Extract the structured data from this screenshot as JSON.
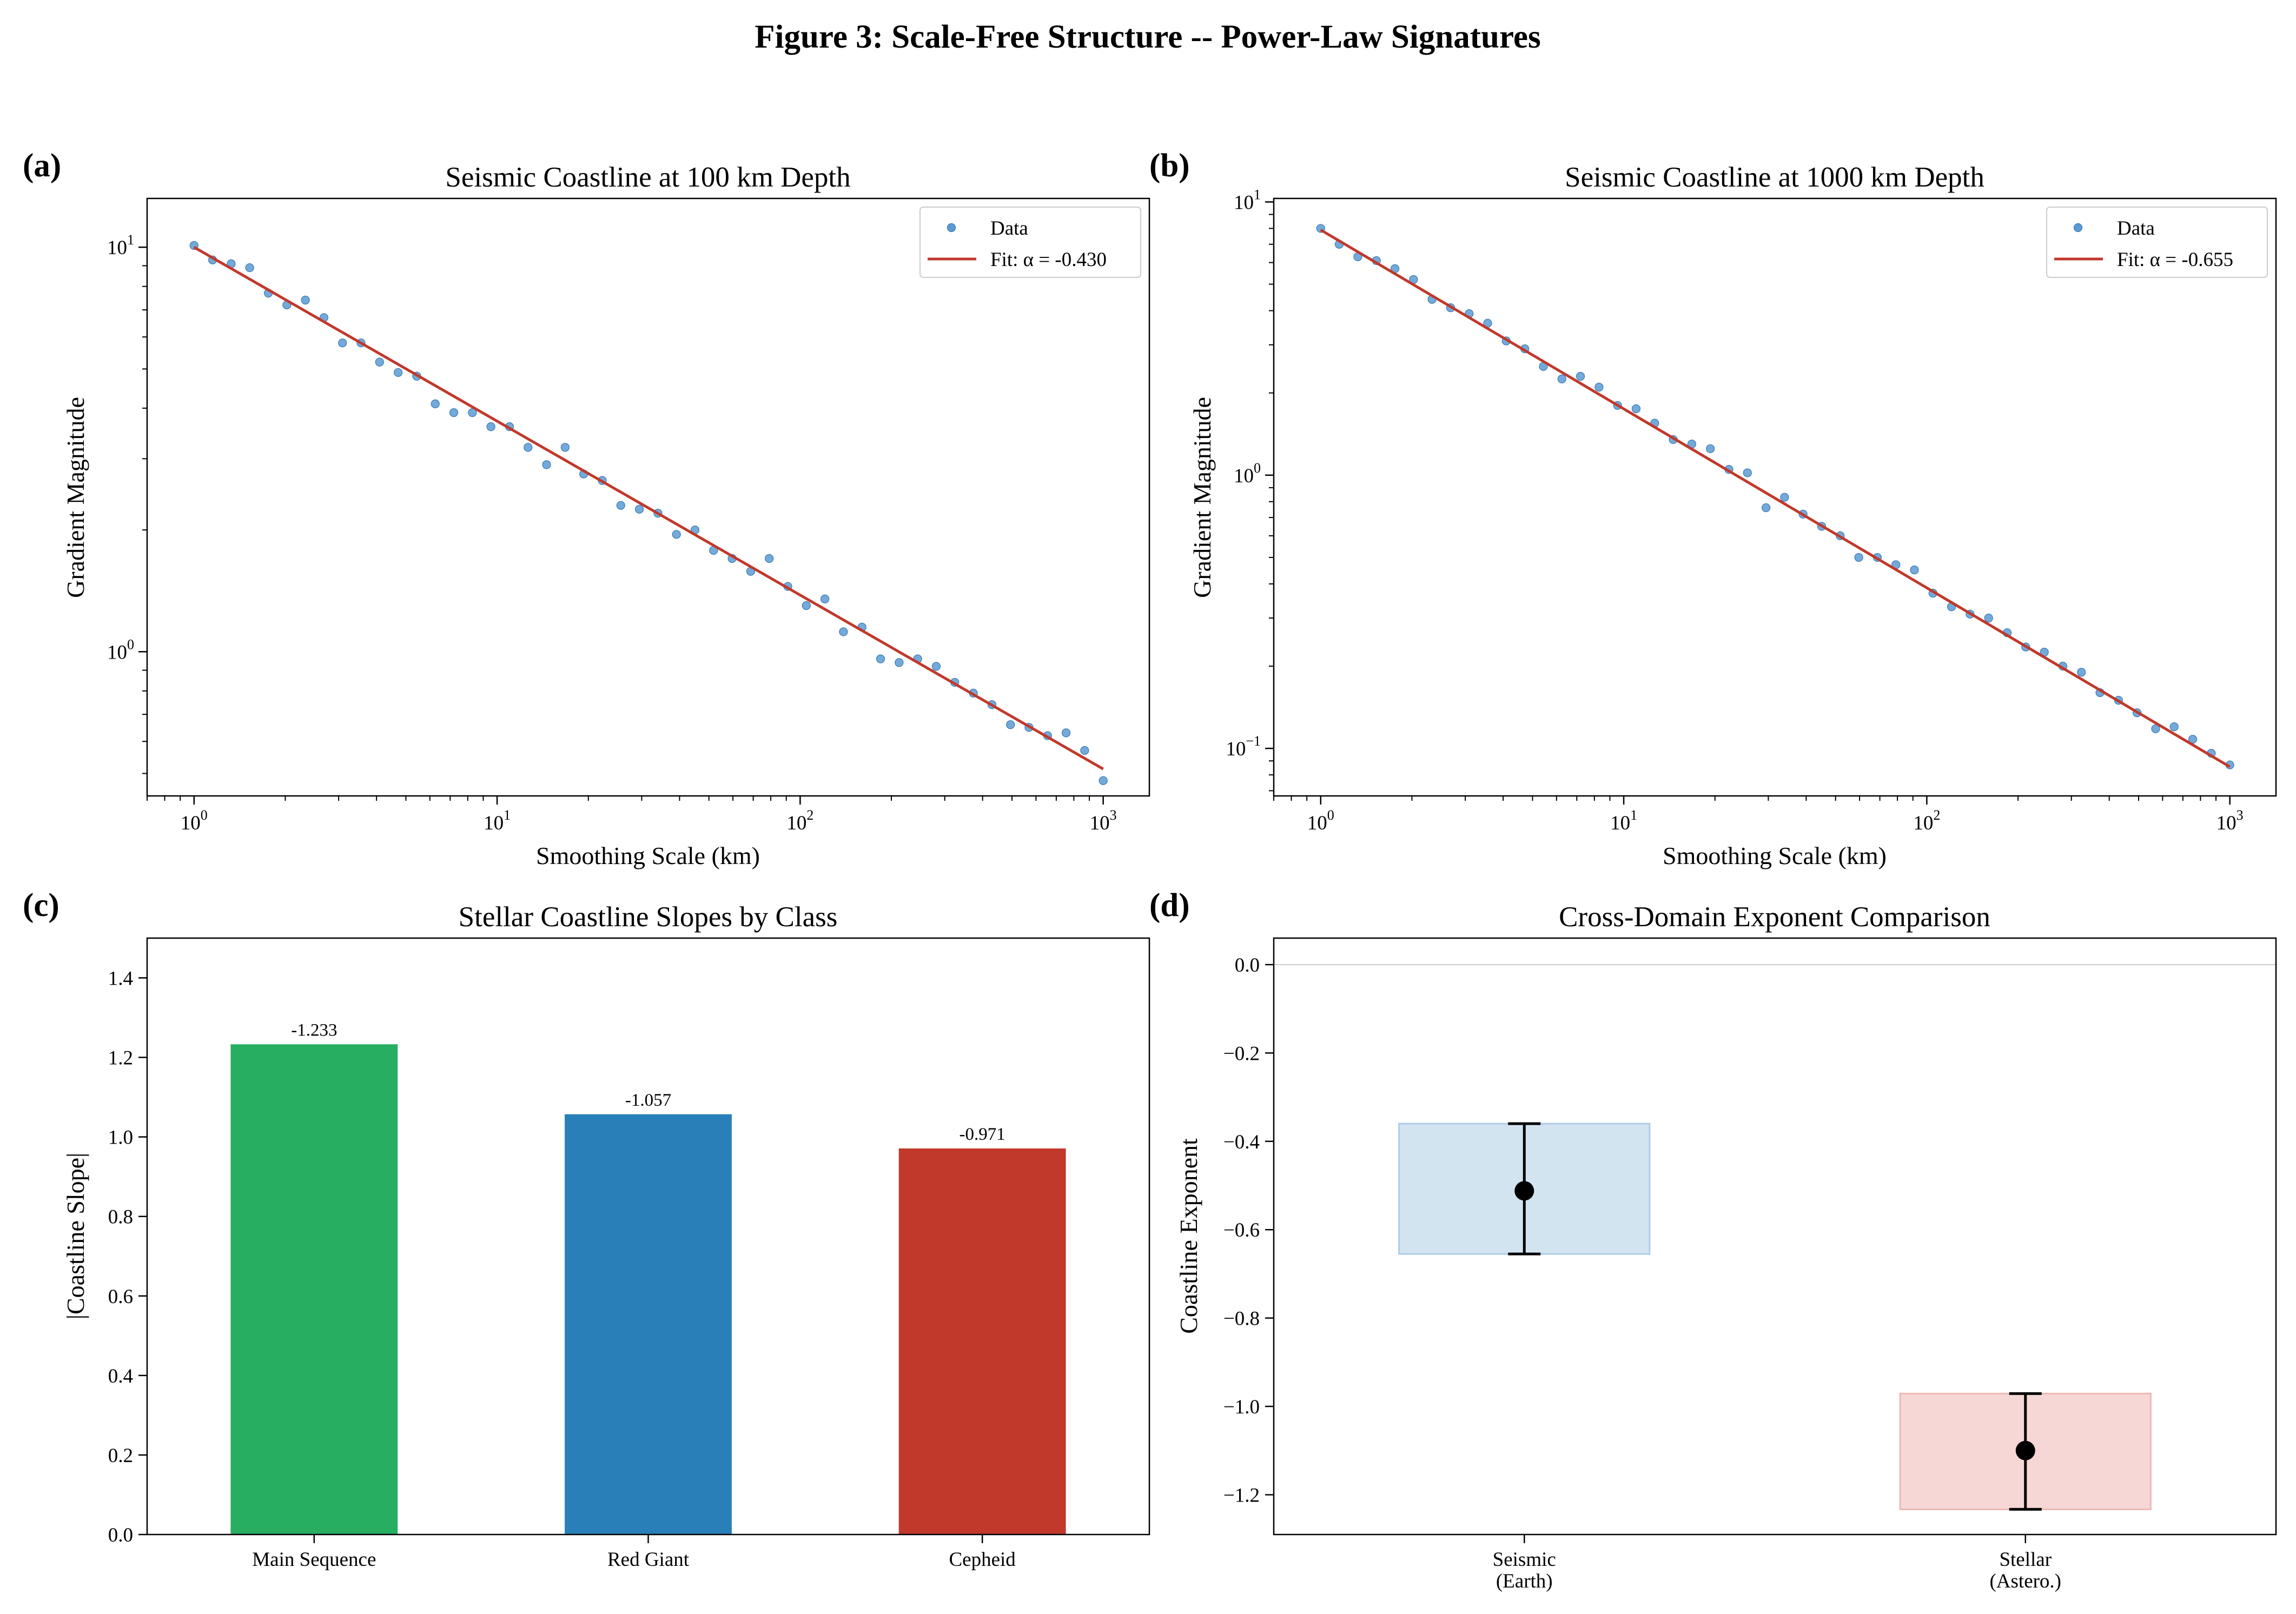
{
  "figure": {
    "title": "Figure 3: Scale-Free Structure -- Power-Law Signatures"
  },
  "colors": {
    "data_marker": "#5b9bd5",
    "fit_line": "#c0392b",
    "main_sequence": "#27ae60",
    "red_giant": "#2980b9",
    "cepheid": "#c0392b",
    "seismic_band": "#aecde6",
    "stellar_band": "#eeb7b3",
    "marker": "#000000"
  },
  "chart_data": [
    {
      "panel": "(a)",
      "type": "scatter",
      "title": "Seismic Coastline at 100 km Depth",
      "xlabel": "Smoothing Scale (km)",
      "ylabel": "Gradient Magnitude",
      "xscale": "log",
      "yscale": "log",
      "xlim": [
        0.7,
        1420
      ],
      "ylim": [
        0.44,
        13.2
      ],
      "xticks": [
        {
          "base": "10",
          "exp": "0",
          "value": 1
        },
        {
          "base": "10",
          "exp": "1",
          "value": 10
        },
        {
          "base": "10",
          "exp": "2",
          "value": 100
        },
        {
          "base": "10",
          "exp": "3",
          "value": 1000
        }
      ],
      "yticks": [
        {
          "base": "10",
          "exp": "0",
          "value": 1
        },
        {
          "base": "10",
          "exp": "1",
          "value": 10
        }
      ],
      "legend": {
        "position": "upper right",
        "data_label": "Data",
        "fit_label": "Fit: α = -0.430"
      },
      "fit": {
        "alpha": -0.43,
        "amplitude": 10.0,
        "x_range": [
          1,
          1000
        ]
      },
      "series": [
        {
          "name": "Data",
          "x": [
            1,
            1.151,
            1.326,
            1.526,
            1.758,
            2.024,
            2.33,
            2.683,
            3.089,
            3.556,
            4.095,
            4.715,
            5.429,
            6.251,
            7.197,
            8.286,
            9.541,
            10.985,
            12.649,
            14.563,
            16.768,
            19.307,
            22.23,
            25.595,
            29.471,
            33.932,
            39.069,
            44.984,
            51.795,
            59.636,
            68.665,
            79.06,
            91.029,
            104.81,
            120.68,
            138.95,
            159.98,
            184.21,
            212.09,
            244.2,
            281.17,
            323.75,
            372.76,
            429.19,
            494.17,
            568.99,
            655.13,
            754.31,
            868.51,
            1000
          ],
          "y": [
            10.1,
            9.3,
            9.1,
            8.9,
            7.7,
            7.2,
            7.4,
            6.7,
            5.8,
            5.8,
            5.2,
            4.9,
            4.8,
            4.1,
            3.9,
            3.9,
            3.6,
            3.6,
            3.2,
            2.9,
            3.2,
            2.75,
            2.65,
            2.3,
            2.25,
            2.2,
            1.95,
            2.0,
            1.78,
            1.7,
            1.58,
            1.7,
            1.45,
            1.3,
            1.35,
            1.12,
            1.15,
            0.96,
            0.94,
            0.96,
            0.92,
            0.84,
            0.79,
            0.74,
            0.66,
            0.65,
            0.62,
            0.63,
            0.57,
            0.48
          ]
        }
      ]
    },
    {
      "panel": "(b)",
      "type": "scatter",
      "title": "Seismic Coastline at 1000 km Depth",
      "xlabel": "Smoothing Scale (km)",
      "ylabel": "Gradient Magnitude",
      "xscale": "log",
      "yscale": "log",
      "xlim": [
        0.7,
        1420
      ],
      "ylim": [
        0.067,
        10.3
      ],
      "xticks": [
        {
          "base": "10",
          "exp": "0",
          "value": 1
        },
        {
          "base": "10",
          "exp": "1",
          "value": 10
        },
        {
          "base": "10",
          "exp": "2",
          "value": 100
        },
        {
          "base": "10",
          "exp": "3",
          "value": 1000
        }
      ],
      "yticks": [
        {
          "base": "10",
          "exp": "−1",
          "value": 0.1
        },
        {
          "base": "10",
          "exp": "0",
          "value": 1
        },
        {
          "base": "10",
          "exp": "1",
          "value": 10
        }
      ],
      "legend": {
        "position": "upper right",
        "data_label": "Data",
        "fit_label": "Fit: α = -0.655"
      },
      "fit": {
        "alpha": -0.655,
        "amplitude": 7.9,
        "x_range": [
          1,
          1000
        ]
      },
      "series": [
        {
          "name": "Data",
          "x": [
            1,
            1.151,
            1.326,
            1.526,
            1.758,
            2.024,
            2.33,
            2.683,
            3.089,
            3.556,
            4.095,
            4.715,
            5.429,
            6.251,
            7.197,
            8.286,
            9.541,
            10.985,
            12.649,
            14.563,
            16.768,
            19.307,
            22.23,
            25.595,
            29.471,
            33.932,
            39.069,
            44.984,
            51.795,
            59.636,
            68.665,
            79.06,
            91.029,
            104.81,
            120.68,
            138.95,
            159.98,
            184.21,
            212.09,
            244.2,
            281.17,
            323.75,
            372.76,
            429.19,
            494.17,
            568.99,
            655.13,
            754.31,
            868.51,
            1000
          ],
          "y": [
            8.0,
            7.0,
            6.3,
            6.1,
            5.7,
            5.2,
            4.4,
            4.1,
            3.9,
            3.6,
            3.1,
            2.9,
            2.5,
            2.25,
            2.3,
            2.1,
            1.8,
            1.75,
            1.55,
            1.35,
            1.3,
            1.25,
            1.05,
            1.02,
            0.76,
            0.83,
            0.72,
            0.65,
            0.6,
            0.5,
            0.5,
            0.47,
            0.45,
            0.37,
            0.33,
            0.31,
            0.3,
            0.265,
            0.235,
            0.225,
            0.2,
            0.19,
            0.16,
            0.15,
            0.135,
            0.118,
            0.12,
            0.108,
            0.096,
            0.087
          ]
        }
      ]
    },
    {
      "panel": "(c)",
      "type": "bar",
      "title": "Stellar Coastline Slopes by Class",
      "xlabel": "",
      "ylabel": "|Coastline Slope|",
      "ylim": [
        0,
        1.5
      ],
      "yticks": [
        0,
        0.2,
        0.4,
        0.6,
        0.8,
        1.0,
        1.2,
        1.4
      ],
      "ytick_labels": [
        "0.0",
        "0.2",
        "0.4",
        "0.6",
        "0.8",
        "1.0",
        "1.2",
        "1.4"
      ],
      "categories": [
        "Main Sequence",
        "Red Giant",
        "Cepheid"
      ],
      "values": [
        1.233,
        1.057,
        0.971
      ],
      "data_labels": [
        "-1.233",
        "-1.057",
        "-0.971"
      ]
    },
    {
      "panel": "(d)",
      "type": "scatter",
      "title": "Cross-Domain Exponent Comparison",
      "xlabel": "",
      "ylabel": "Coastline Exponent",
      "ylim": [
        -1.29,
        0.06
      ],
      "yticks": [
        0,
        -0.2,
        -0.4,
        -0.6,
        -0.8,
        -1.0,
        -1.2
      ],
      "ytick_labels": [
        "0.0",
        "−0.2",
        "−0.4",
        "−0.6",
        "−0.8",
        "−1.0",
        "−1.2"
      ],
      "reference_line": 0.0,
      "categories": [
        {
          "line1": "Seismic",
          "line2": "(Earth)",
          "value": -0.512,
          "err_low": -0.655,
          "err_high": -0.36,
          "band_low": -0.655,
          "band_high": -0.36
        },
        {
          "line1": "Stellar",
          "line2": "(Astero.)",
          "value": -1.1,
          "err_low": -1.233,
          "err_high": -0.971,
          "band_low": -1.233,
          "band_high": -0.971
        }
      ]
    }
  ]
}
